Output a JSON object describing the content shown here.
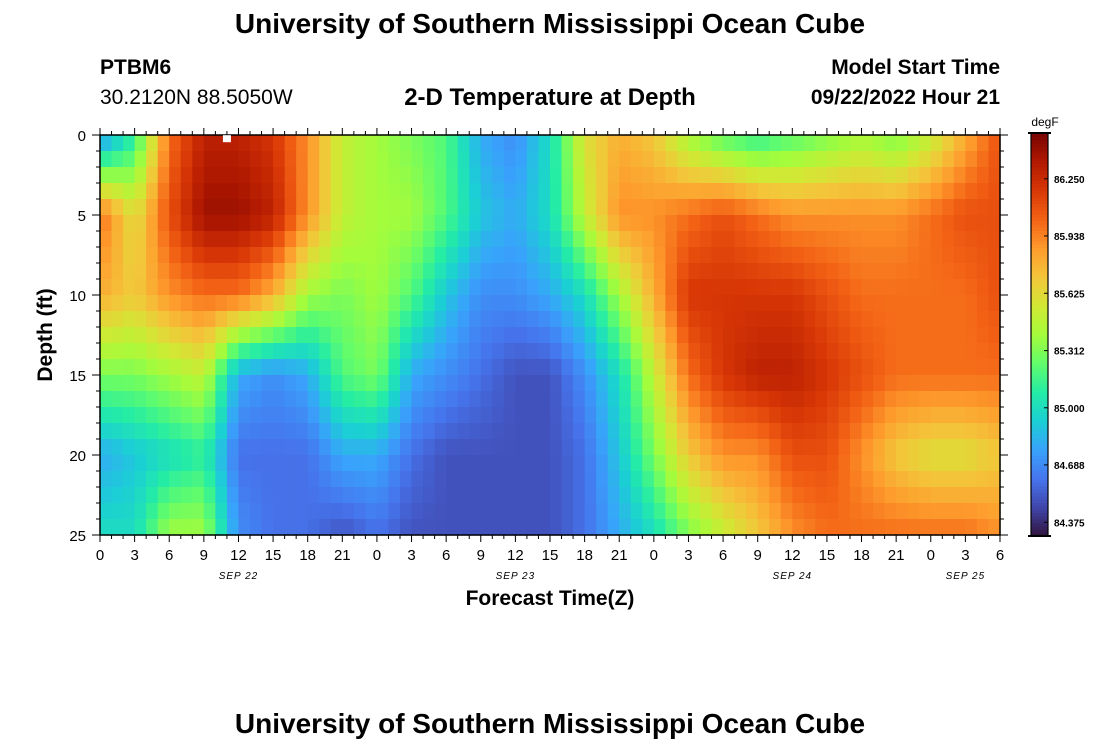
{
  "header": {
    "title": "University of Southern Mississippi Ocean Cube",
    "station": "PTBM6",
    "coordinates": "30.2120N  88.5050W",
    "subtitle": "2-D Temperature at Depth",
    "model_start_label": "Model Start Time",
    "model_start_value": "09/22/2022 Hour 21"
  },
  "footer": {
    "title": "University of Southern Mississippi Ocean Cube"
  },
  "chart_data": {
    "type": "heatmap",
    "title": "2-D Temperature at Depth",
    "xlabel": "Forecast Time(Z)",
    "ylabel": "Depth (ft)",
    "xlim": [
      0,
      78
    ],
    "ylim": [
      25,
      0
    ],
    "x_ticks": [
      0,
      3,
      6,
      9,
      12,
      15,
      18,
      21,
      24,
      27,
      30,
      33,
      36,
      39,
      42,
      45,
      48,
      51,
      54,
      57,
      60,
      63,
      66,
      69,
      72,
      75,
      78
    ],
    "x_tick_labels": [
      "0",
      "3",
      "6",
      "9",
      "12",
      "15",
      "18",
      "21",
      "0",
      "3",
      "6",
      "9",
      "12",
      "15",
      "18",
      "21",
      "0",
      "3",
      "6",
      "9",
      "12",
      "15",
      "18",
      "21",
      "0",
      "3",
      "6"
    ],
    "day_labels": [
      {
        "text": "SEP 22",
        "x": 12
      },
      {
        "text": "SEP 23",
        "x": 36
      },
      {
        "text": "SEP 24",
        "x": 60
      },
      {
        "text": "SEP 25",
        "x": 75
      }
    ],
    "y_ticks": [
      0,
      5,
      10,
      15,
      20,
      25
    ],
    "colorbar": {
      "unit": "degF",
      "range": [
        84.3,
        86.5
      ],
      "ticks": [
        84.375,
        84.688,
        85.0,
        85.312,
        85.625,
        85.938,
        86.25
      ],
      "tick_labels": [
        "84.375",
        "84.688",
        "85.000",
        "85.312",
        "85.625",
        "85.938",
        "86.250"
      ],
      "colors": [
        "#30123b",
        "#4145ab",
        "#4675ed",
        "#39a2fc",
        "#1bcfd4",
        "#24eca6",
        "#61fc6c",
        "#a4fc3b",
        "#d1e834",
        "#f3c63a",
        "#fe9b2d",
        "#f36315",
        "#d93806",
        "#b11901",
        "#7a0402"
      ]
    },
    "depths_ft": [
      0,
      5,
      10,
      15,
      20,
      25
    ],
    "times_h": [
      0,
      3,
      6,
      9,
      12,
      15,
      18,
      21,
      24,
      27,
      30,
      33,
      36,
      39,
      42,
      45,
      48,
      51,
      54,
      57,
      60,
      63,
      66,
      69,
      72,
      75,
      78
    ],
    "values_degF": [
      [
        84.7,
        85.1,
        86.0,
        86.3,
        86.3,
        86.2,
        85.9,
        85.5,
        85.4,
        85.3,
        85.2,
        84.8,
        84.7,
        85.0,
        85.6,
        85.8,
        85.7,
        85.4,
        85.2,
        85.1,
        85.2,
        85.3,
        85.4,
        85.3,
        85.5,
        85.8,
        86.1
      ],
      [
        86.0,
        85.6,
        86.1,
        86.4,
        86.4,
        86.3,
        85.9,
        85.5,
        85.4,
        85.4,
        85.2,
        84.9,
        84.8,
        85.0,
        85.5,
        85.9,
        85.9,
        86.0,
        86.1,
        86.0,
        85.9,
        85.9,
        85.9,
        85.9,
        86.0,
        86.1,
        86.1
      ],
      [
        85.8,
        85.7,
        85.9,
        86.0,
        86.0,
        85.8,
        85.4,
        85.3,
        85.4,
        85.2,
        84.9,
        84.7,
        84.7,
        84.8,
        85.0,
        85.4,
        85.8,
        86.2,
        86.2,
        86.2,
        86.2,
        86.1,
        86.0,
        86.0,
        86.0,
        86.0,
        86.1
      ],
      [
        85.3,
        85.3,
        85.4,
        85.5,
        84.8,
        84.7,
        84.8,
        85.2,
        85.3,
        84.8,
        84.7,
        84.6,
        84.5,
        84.5,
        84.7,
        85.0,
        85.5,
        86.0,
        86.2,
        86.3,
        86.3,
        86.2,
        86.1,
        86.0,
        86.0,
        86.0,
        86.0
      ],
      [
        84.8,
        84.9,
        85.0,
        85.1,
        84.6,
        84.6,
        84.6,
        84.8,
        84.8,
        84.6,
        84.5,
        84.5,
        84.5,
        84.5,
        84.6,
        84.9,
        85.3,
        85.7,
        85.9,
        85.9,
        86.1,
        86.1,
        85.9,
        85.7,
        85.6,
        85.6,
        85.7
      ],
      [
        85.0,
        85.0,
        85.4,
        85.4,
        84.7,
        84.6,
        84.6,
        84.5,
        84.6,
        84.5,
        84.5,
        84.5,
        84.5,
        84.5,
        84.6,
        84.8,
        85.0,
        85.3,
        85.5,
        85.7,
        85.9,
        86.0,
        86.0,
        86.0,
        86.0,
        86.0,
        85.9
      ]
    ],
    "marker": {
      "type": "square",
      "x": 11,
      "y": 0.2
    }
  }
}
